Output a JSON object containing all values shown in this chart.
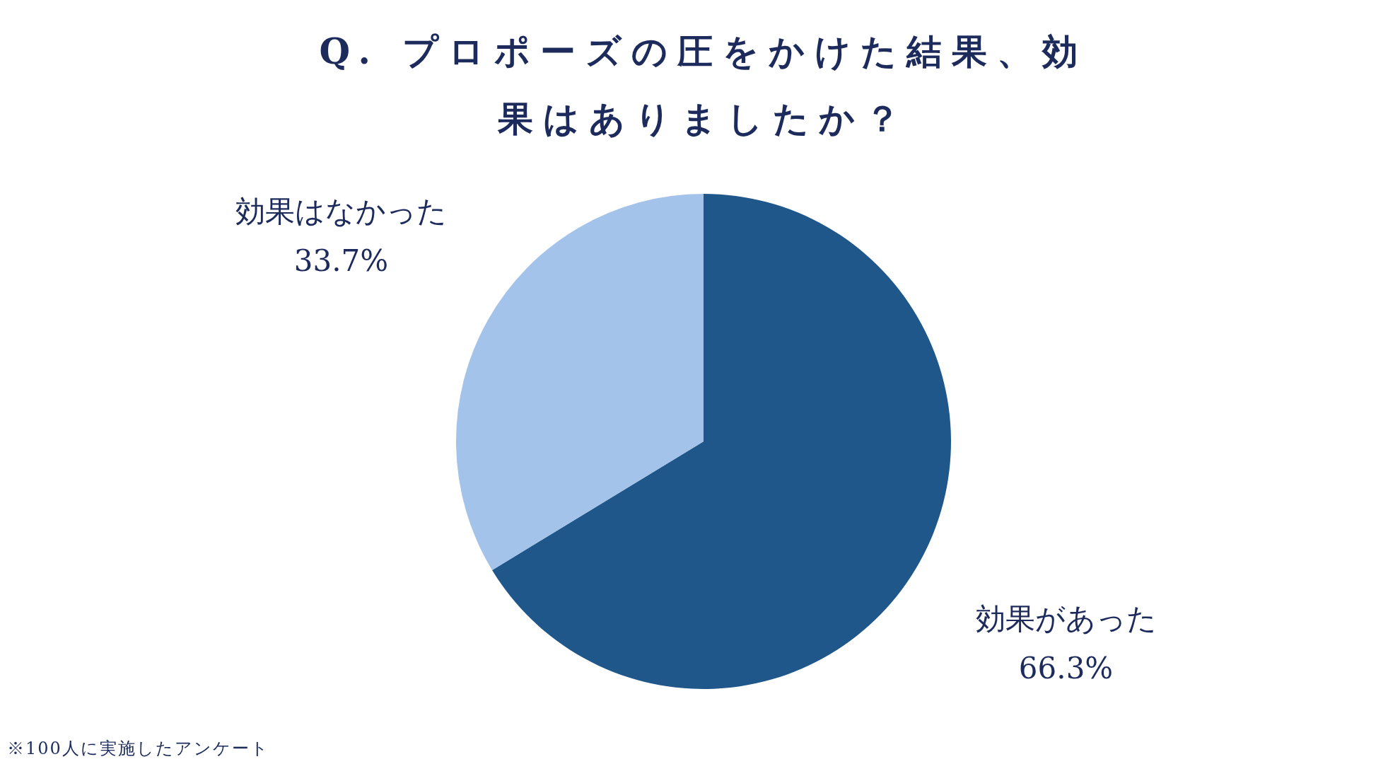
{
  "chart_data": {
    "type": "pie",
    "title": "Q. プロポーズの圧をかけた結果、効果はありましたか？",
    "categories": [
      "効果があった",
      "効果はなかった"
    ],
    "values": [
      66.3,
      33.7
    ],
    "value_labels": [
      "66.3%",
      "33.7%"
    ],
    "colors": [
      "#1f578b",
      "#a4c3eb"
    ],
    "annotations": [
      "※100人に実施したアンケート"
    ]
  }
}
